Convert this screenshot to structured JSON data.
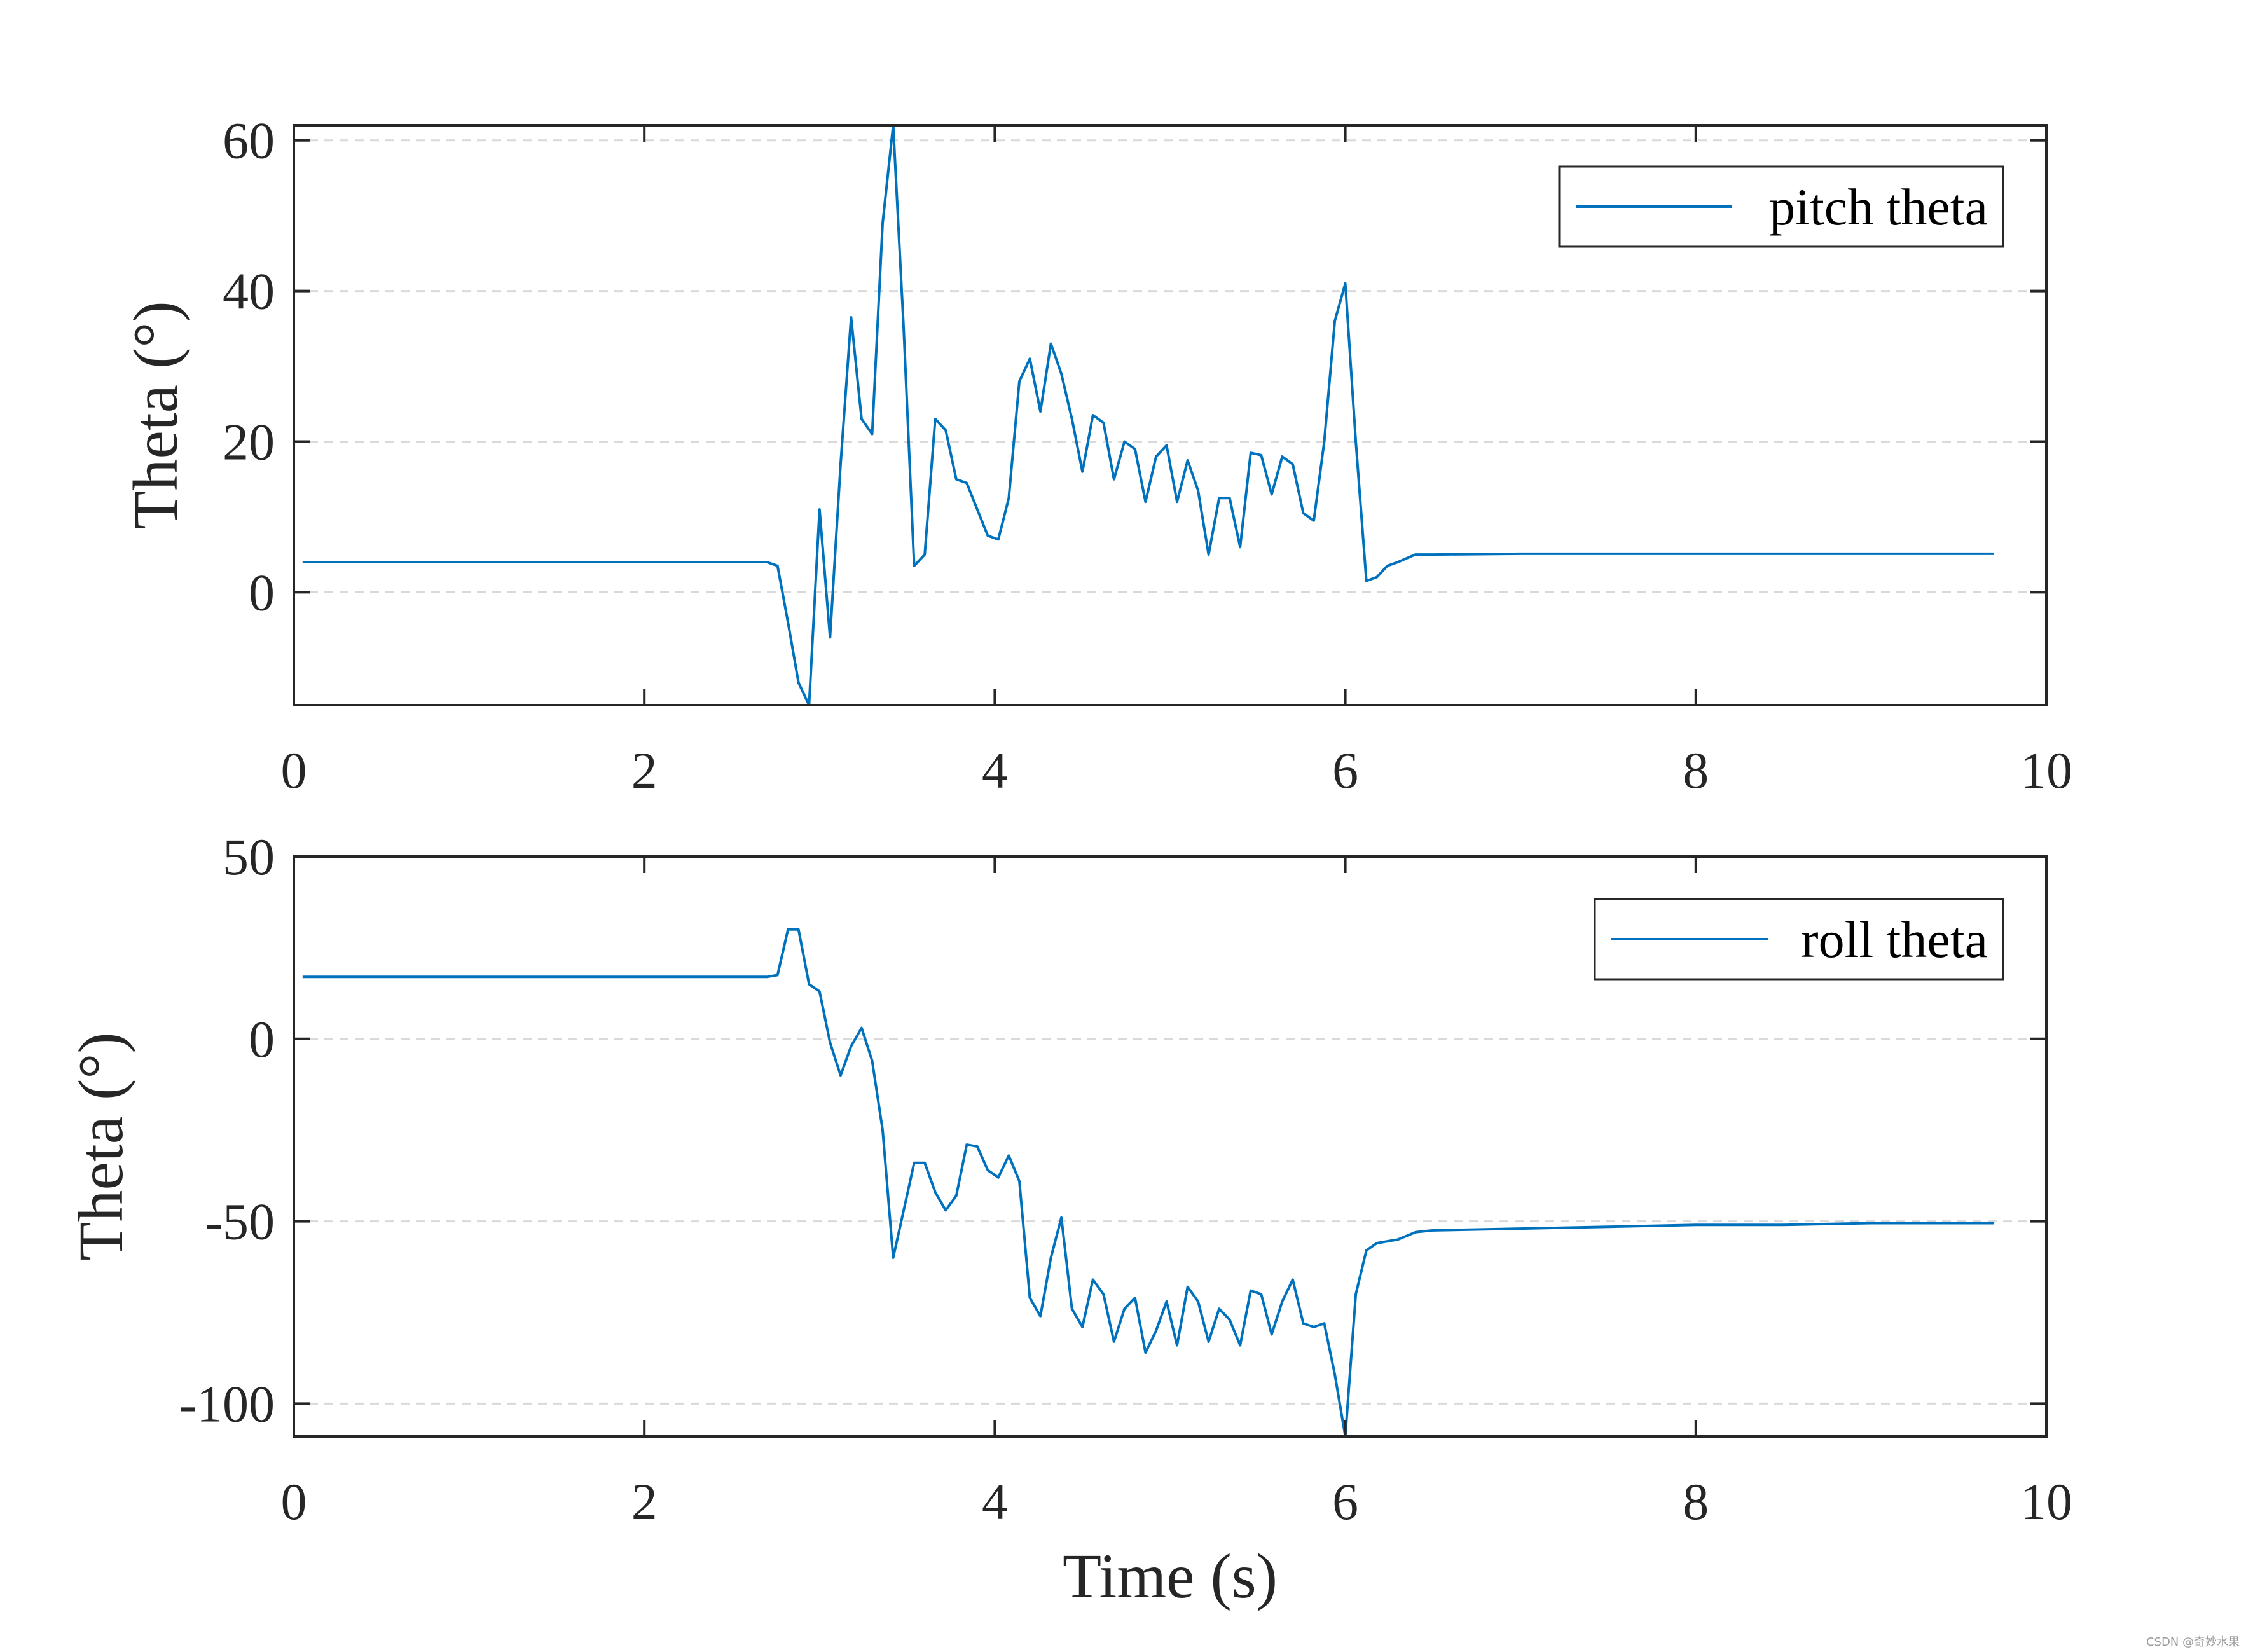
{
  "colors": {
    "series": "#0072BD",
    "axis": "#262626",
    "grid": "#d9d9d9",
    "background": "#ffffff"
  },
  "watermark": "CSDN @奇妙水果",
  "chart_data": [
    {
      "type": "line",
      "xlabel": "",
      "ylabel": "Theta (°)",
      "xlim": [
        0,
        10
      ],
      "ylim": [
        -15,
        62
      ],
      "xticks": [
        "0",
        "2",
        "4",
        "6",
        "8",
        "10"
      ],
      "yticks": [
        "0",
        "20",
        "40",
        "60"
      ],
      "ytick_values": [
        0,
        20,
        40,
        60
      ],
      "grid": "horizontal dashed",
      "legend_position": "top-right",
      "series": [
        {
          "name": "pitch theta",
          "x": [
            0.05,
            1.5,
            2.6,
            2.7,
            2.76,
            2.82,
            2.88,
            2.94,
            3.0,
            3.06,
            3.12,
            3.18,
            3.24,
            3.3,
            3.36,
            3.42,
            3.48,
            3.54,
            3.6,
            3.66,
            3.72,
            3.78,
            3.84,
            3.9,
            3.96,
            4.02,
            4.08,
            4.14,
            4.2,
            4.26,
            4.32,
            4.38,
            4.44,
            4.5,
            4.56,
            4.62,
            4.68,
            4.74,
            4.8,
            4.86,
            4.92,
            4.98,
            5.04,
            5.1,
            5.16,
            5.22,
            5.28,
            5.34,
            5.4,
            5.46,
            5.52,
            5.58,
            5.64,
            5.7,
            5.76,
            5.82,
            5.88,
            5.94,
            6.0,
            6.06,
            6.12,
            6.18,
            6.24,
            6.3,
            6.4,
            6.5,
            7.0,
            7.5,
            8.0,
            8.5,
            9.0,
            9.5,
            9.7
          ],
          "y": [
            4,
            4,
            4,
            4,
            3.5,
            -4,
            -12,
            -15,
            11,
            -6,
            17,
            36.5,
            23,
            21,
            49,
            62,
            35,
            3.5,
            5,
            23,
            21.5,
            15,
            14.5,
            11,
            7.5,
            7,
            12.5,
            28,
            31,
            24,
            33,
            29,
            23,
            16,
            23.5,
            22.5,
            15,
            20,
            19,
            12,
            18,
            19.5,
            12,
            17.5,
            13.5,
            5,
            12.5,
            12.5,
            6,
            18.5,
            18.2,
            13,
            18,
            17,
            10.5,
            9.5,
            20,
            36,
            41,
            20,
            1.5,
            2,
            3.5,
            4,
            5,
            5,
            5.1,
            5.1,
            5.1,
            5.1,
            5.1,
            5.1,
            5.1
          ]
        }
      ]
    },
    {
      "type": "line",
      "xlabel": "Time (s)",
      "ylabel": "Theta (°)",
      "xlim": [
        0,
        10
      ],
      "ylim": [
        -109,
        50
      ],
      "xticks": [
        "0",
        "2",
        "4",
        "6",
        "8",
        "10"
      ],
      "yticks": [
        "-100",
        "-50",
        "0",
        "50"
      ],
      "ytick_values": [
        -100,
        -50,
        0,
        50
      ],
      "grid": "horizontal dashed",
      "legend_position": "top-right",
      "series": [
        {
          "name": "roll theta",
          "x": [
            0.05,
            1.5,
            2.6,
            2.7,
            2.76,
            2.82,
            2.88,
            2.94,
            3.0,
            3.06,
            3.12,
            3.18,
            3.24,
            3.3,
            3.36,
            3.42,
            3.48,
            3.54,
            3.6,
            3.66,
            3.72,
            3.78,
            3.84,
            3.9,
            3.96,
            4.02,
            4.08,
            4.14,
            4.2,
            4.26,
            4.32,
            4.38,
            4.44,
            4.5,
            4.56,
            4.62,
            4.68,
            4.74,
            4.8,
            4.86,
            4.92,
            4.98,
            5.04,
            5.1,
            5.16,
            5.22,
            5.28,
            5.34,
            5.4,
            5.46,
            5.52,
            5.58,
            5.64,
            5.7,
            5.76,
            5.82,
            5.88,
            5.94,
            6.0,
            6.06,
            6.12,
            6.18,
            6.24,
            6.3,
            6.4,
            6.5,
            7.0,
            7.5,
            8.0,
            8.5,
            9.0,
            9.5,
            9.7
          ],
          "y": [
            17,
            17,
            17,
            17,
            17.5,
            30,
            30,
            15,
            13,
            -1,
            -10,
            -2,
            3,
            -6,
            -25,
            -60,
            -47,
            -34,
            -34,
            -42,
            -47,
            -43,
            -29,
            -29.5,
            -36,
            -38,
            -32,
            -39,
            -71,
            -76,
            -60,
            -49,
            -74,
            -79,
            -66,
            -70,
            -83,
            -74,
            -71,
            -86,
            -80,
            -72,
            -84,
            -68,
            -72,
            -83,
            -74,
            -77,
            -84,
            -69,
            -70,
            -81,
            -72,
            -66,
            -78,
            -79,
            -78,
            -92,
            -109,
            -70,
            -58,
            -56,
            -55.5,
            -55,
            -53,
            -52.5,
            -52,
            -51.5,
            -51,
            -51,
            -50.5,
            -50.5,
            -50.5
          ]
        }
      ]
    }
  ]
}
